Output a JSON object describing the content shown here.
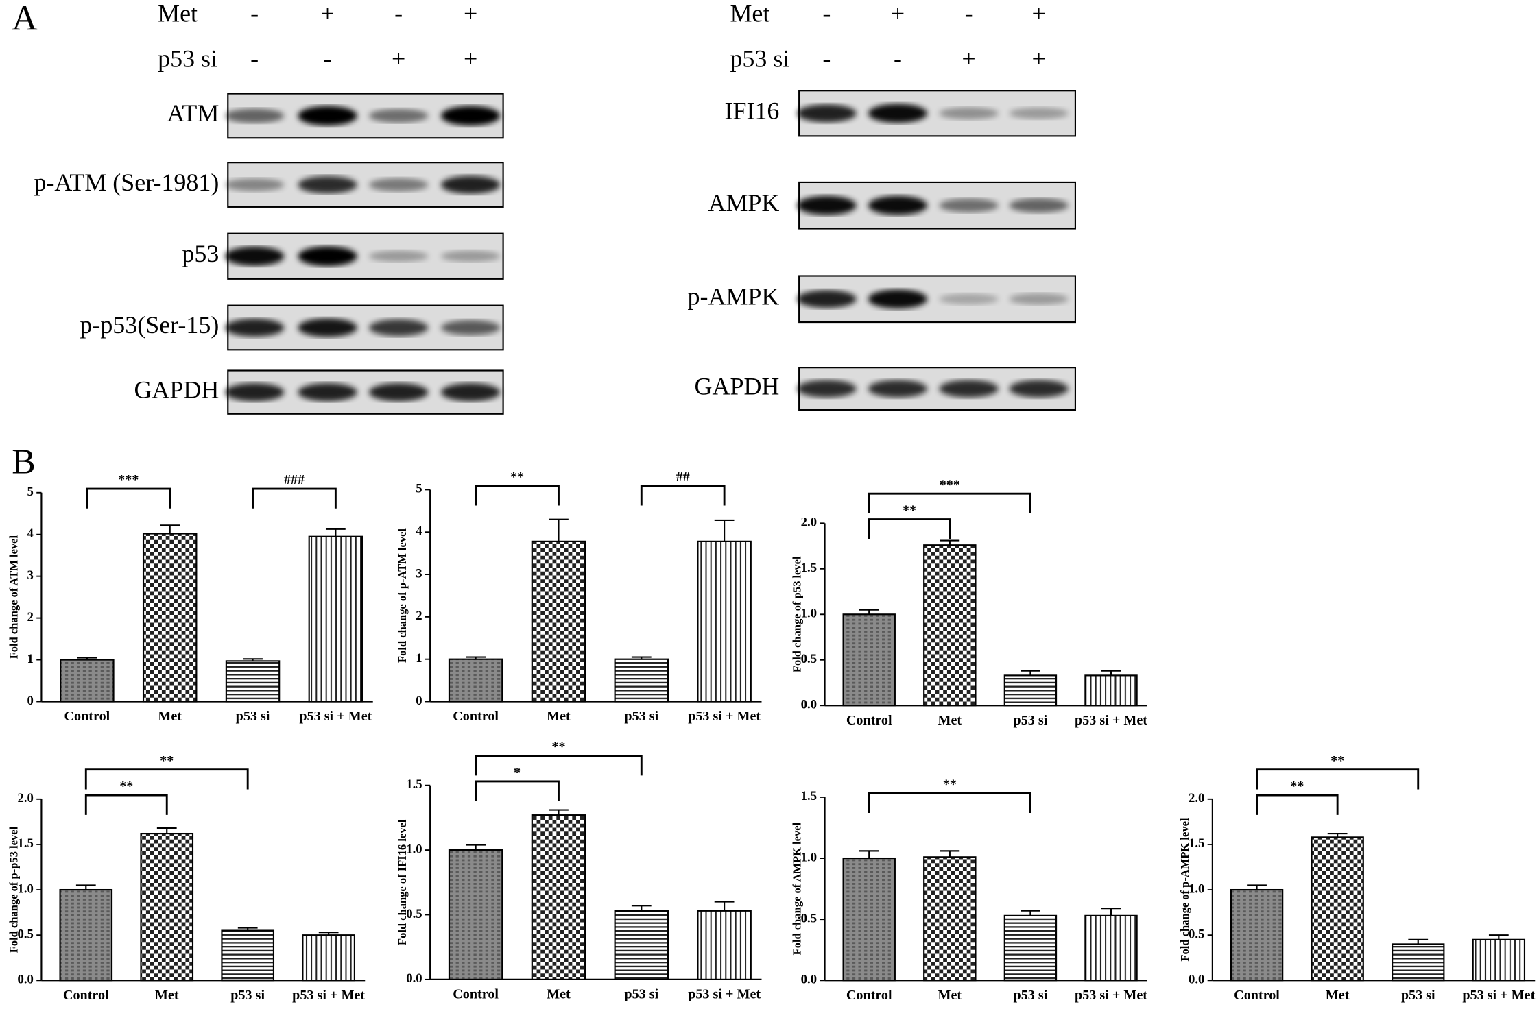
{
  "panel_labels": [
    "A",
    "B"
  ],
  "blots": [
    {
      "treatments": [
        {
          "label": "Met",
          "signs": [
            "-",
            "+",
            "-",
            "+"
          ]
        },
        {
          "label": "p53 si",
          "signs": [
            "-",
            "-",
            "+",
            "+"
          ]
        }
      ],
      "bands": [
        "ATM",
        "p-ATM (Ser-1981)",
        "p53",
        "p-p53(Ser-15)",
        "GAPDH"
      ]
    },
    {
      "treatments": [
        {
          "label": "Met",
          "signs": [
            "-",
            "+",
            "-",
            "+"
          ]
        },
        {
          "label": "p53 si",
          "signs": [
            "-",
            "-",
            "+",
            "+"
          ]
        }
      ],
      "bands": [
        "IFI16",
        "AMPK",
        "p-AMPK",
        "GAPDH"
      ]
    }
  ],
  "chart_data": [
    {
      "type": "bar",
      "ylabel": "Fold change of ATM level",
      "categories": [
        "Control",
        "Met",
        "p53 si",
        "p53 si + Met"
      ],
      "values": [
        1.0,
        4.02,
        0.97,
        3.95
      ],
      "errors": [
        0.05,
        0.2,
        0.05,
        0.18
      ],
      "ylim": [
        0,
        5
      ],
      "yticks": [
        0,
        1,
        2,
        3,
        4,
        5
      ],
      "annotations": [
        {
          "label": "***",
          "from": "Control",
          "to": "Met"
        },
        {
          "label": "###",
          "from": "p53 si",
          "to": "p53 si + Met"
        }
      ]
    },
    {
      "type": "bar",
      "ylabel": "Fold change of p-ATM level",
      "categories": [
        "Control",
        "Met",
        "p53 si",
        "p53 si + Met"
      ],
      "values": [
        1.0,
        3.78,
        1.0,
        3.78
      ],
      "errors": [
        0.05,
        0.52,
        0.05,
        0.5
      ],
      "ylim": [
        0,
        5
      ],
      "yticks": [
        0,
        1,
        2,
        3,
        4,
        5
      ],
      "annotations": [
        {
          "label": "**",
          "from": "Control",
          "to": "Met"
        },
        {
          "label": "##",
          "from": "p53 si",
          "to": "p53 si + Met"
        }
      ]
    },
    {
      "type": "bar",
      "ylabel": "Fold change of p53 level",
      "categories": [
        "Control",
        "Met",
        "p53 si",
        "p53 si + Met"
      ],
      "values": [
        1.0,
        1.76,
        0.33,
        0.33
      ],
      "errors": [
        0.05,
        0.05,
        0.05,
        0.05
      ],
      "ylim": [
        0,
        2
      ],
      "yticks": [
        {
          "value": 0,
          "label": "0.0"
        },
        {
          "value": 0.5,
          "label": "0.5"
        },
        {
          "value": 1,
          "label": "1.0"
        },
        {
          "value": 1.5,
          "label": "1.5"
        },
        {
          "value": 2,
          "label": "2.0"
        }
      ],
      "annotations": [
        {
          "label": "**",
          "from": "Control",
          "to": "Met"
        },
        {
          "label": "***",
          "from": "Control",
          "to": "p53 si"
        }
      ]
    },
    {
      "type": "bar",
      "ylabel": "Fold change of p-p53 level",
      "categories": [
        "Control",
        "Met",
        "p53 si",
        "p53 si + Met"
      ],
      "values": [
        1.0,
        1.62,
        0.55,
        0.5
      ],
      "errors": [
        0.05,
        0.06,
        0.03,
        0.03
      ],
      "ylim": [
        0,
        2
      ],
      "yticks": [
        {
          "value": 0,
          "label": "0.0"
        },
        {
          "value": 0.5,
          "label": "0.5"
        },
        {
          "value": 1,
          "label": "1.0"
        },
        {
          "value": 1.5,
          "label": "1.5"
        },
        {
          "value": 2,
          "label": "2.0"
        }
      ],
      "annotations": [
        {
          "label": "**",
          "from": "Control",
          "to": "Met"
        },
        {
          "label": "**",
          "from": "Control",
          "to": "p53 si"
        }
      ]
    },
    {
      "type": "bar",
      "ylabel": "Fold change of IFI16 level",
      "categories": [
        "Control",
        "Met",
        "p53 si",
        "p53 si + Met"
      ],
      "values": [
        1.0,
        1.27,
        0.53,
        0.53
      ],
      "errors": [
        0.04,
        0.04,
        0.04,
        0.07
      ],
      "ylim": [
        0,
        1.5
      ],
      "yticks": [
        {
          "value": 0,
          "label": "0.0"
        },
        {
          "value": 0.5,
          "label": "0.5"
        },
        {
          "value": 1,
          "label": "1.0"
        },
        {
          "value": 1.5,
          "label": "1.5"
        }
      ],
      "annotations": [
        {
          "label": "*",
          "from": "Control",
          "to": "Met"
        },
        {
          "label": "**",
          "from": "Control",
          "to": "p53 si"
        }
      ]
    },
    {
      "type": "bar",
      "ylabel": "Fold change of AMPK level",
      "categories": [
        "Control",
        "Met",
        "p53 si",
        "p53 si + Met"
      ],
      "values": [
        1.0,
        1.01,
        0.53,
        0.53
      ],
      "errors": [
        0.06,
        0.05,
        0.04,
        0.06
      ],
      "ylim": [
        0,
        1.5
      ],
      "yticks": [
        {
          "value": 0,
          "label": "0.0"
        },
        {
          "value": 0.5,
          "label": "0.5"
        },
        {
          "value": 1,
          "label": "1.0"
        },
        {
          "value": 1.5,
          "label": "1.5"
        }
      ],
      "annotations": [
        {
          "label": "**",
          "from": "Control",
          "to": "p53 si"
        }
      ]
    },
    {
      "type": "bar",
      "ylabel": "Fold change of p-AMPK level",
      "categories": [
        "Control",
        "Met",
        "p53 si",
        "p53 si + Met"
      ],
      "values": [
        1.0,
        1.58,
        0.4,
        0.45
      ],
      "errors": [
        0.05,
        0.04,
        0.05,
        0.05
      ],
      "ylim": [
        0,
        2
      ],
      "yticks": [
        {
          "value": 0,
          "label": "0.0"
        },
        {
          "value": 0.5,
          "label": "0.5"
        },
        {
          "value": 1,
          "label": "1.0"
        },
        {
          "value": 1.5,
          "label": "1.5"
        },
        {
          "value": 2,
          "label": "2.0"
        }
      ],
      "annotations": [
        {
          "label": "**",
          "from": "Control",
          "to": "Met"
        },
        {
          "label": "**",
          "from": "Control",
          "to": "p53 si"
        }
      ]
    }
  ]
}
